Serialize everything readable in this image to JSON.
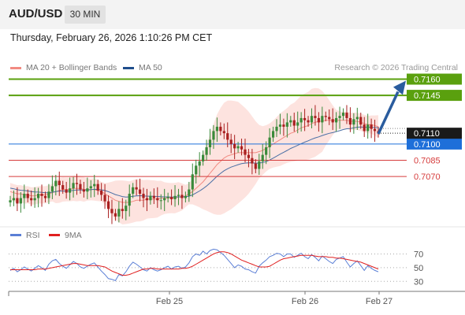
{
  "header": {
    "symbol": "AUD/USD",
    "timeframe": "30 MIN",
    "timestamp": "Thursday, February 26, 2026 1:10:26 PM CET"
  },
  "legend": {
    "ma_bb": "MA 20 + Bollinger Bands",
    "ma50": "MA 50",
    "ma_bb_color": "#f28b82",
    "ma50_color": "#1f4e8c"
  },
  "watermark": "Research © 2026 Trading Central",
  "rsi_legend": {
    "rsi": "RSI",
    "ma": "9MA",
    "rsi_color": "#5b7fd6",
    "ma_color": "#e02020"
  },
  "chart_data": [
    {
      "type": "candlestick",
      "ylim": [
        0.7022,
        0.7164
      ],
      "x_ticks": [
        "Feb 25",
        "Feb 26",
        "Feb 27"
      ],
      "last_price": {
        "label": "0.7110",
        "value": 0.711
      },
      "levels": [
        {
          "label": "0.7160",
          "value": 0.716,
          "kind": "target",
          "color": "#5aa00e"
        },
        {
          "label": "0.7145",
          "value": 0.7145,
          "kind": "target",
          "color": "#5aa00e"
        },
        {
          "label": "0.7100",
          "value": 0.71,
          "kind": "pivot",
          "color": "#1e6fd9"
        },
        {
          "label": "0.7085",
          "value": 0.7085,
          "kind": "support",
          "color": "#d63c3c"
        },
        {
          "label": "0.7070",
          "value": 0.707,
          "kind": "support",
          "color": "#d63c3c"
        }
      ],
      "close": [
        0.7048,
        0.705,
        0.7045,
        0.705,
        0.7054,
        0.705,
        0.7048,
        0.705,
        0.7054,
        0.7052,
        0.705,
        0.7056,
        0.7061,
        0.7066,
        0.7062,
        0.7058,
        0.7055,
        0.7059,
        0.7064,
        0.7063,
        0.7058,
        0.7056,
        0.7059,
        0.7061,
        0.7063,
        0.7057,
        0.7053,
        0.7047,
        0.704,
        0.7036,
        0.7033,
        0.704,
        0.7038,
        0.7043,
        0.7054,
        0.706,
        0.7058,
        0.7054,
        0.705,
        0.7048,
        0.7052,
        0.705,
        0.7048,
        0.7048,
        0.705,
        0.7051,
        0.7049,
        0.7052,
        0.7053,
        0.705,
        0.7052,
        0.7058,
        0.7072,
        0.708,
        0.7084,
        0.709,
        0.7097,
        0.7104,
        0.7112,
        0.7116,
        0.7112,
        0.711,
        0.7104,
        0.71,
        0.7096,
        0.7098,
        0.7095,
        0.709,
        0.7087,
        0.7082,
        0.7077,
        0.7084,
        0.709,
        0.7097,
        0.7106,
        0.7112,
        0.7116,
        0.7118,
        0.7116,
        0.712,
        0.7122,
        0.7117,
        0.712,
        0.7124,
        0.7122,
        0.712,
        0.7126,
        0.7124,
        0.712,
        0.7126,
        0.7125,
        0.7123,
        0.712,
        0.7124,
        0.7126,
        0.7129,
        0.7124,
        0.7118,
        0.7123,
        0.7125,
        0.7118,
        0.7112,
        0.7118,
        0.7114,
        0.7112,
        0.711
      ],
      "ma20": [
        0.7056,
        0.7055,
        0.7054,
        0.7054,
        0.7053,
        0.7053,
        0.7052,
        0.7052,
        0.7053,
        0.7053,
        0.7053,
        0.7054,
        0.7055,
        0.7056,
        0.7057,
        0.7058,
        0.7058,
        0.7058,
        0.7059,
        0.7059,
        0.7059,
        0.7058,
        0.7058,
        0.7058,
        0.7058,
        0.7057,
        0.7056,
        0.7054,
        0.7052,
        0.705,
        0.7048,
        0.7047,
        0.7046,
        0.7046,
        0.7046,
        0.7047,
        0.7048,
        0.7048,
        0.7048,
        0.7049,
        0.7049,
        0.7049,
        0.7049,
        0.705,
        0.705,
        0.705,
        0.705,
        0.705,
        0.7051,
        0.7051,
        0.7052,
        0.7054,
        0.7056,
        0.7059,
        0.7062,
        0.7065,
        0.7069,
        0.7073,
        0.7077,
        0.7081,
        0.7084,
        0.7087,
        0.7089,
        0.709,
        0.7091,
        0.7092,
        0.7092,
        0.7092,
        0.7092,
        0.7092,
        0.7092,
        0.7093,
        0.7094,
        0.7096,
        0.7098,
        0.71,
        0.7102,
        0.7104,
        0.7106,
        0.7108,
        0.711,
        0.7111,
        0.7113,
        0.7115,
        0.7116,
        0.7117,
        0.7119,
        0.712,
        0.7121,
        0.7121,
        0.7122,
        0.7122,
        0.7122,
        0.7122,
        0.7122,
        0.7122,
        0.7122,
        0.7121,
        0.7121,
        0.7121,
        0.712,
        0.7119,
        0.7118,
        0.7118,
        0.7117,
        0.7116
      ]
    },
    {
      "type": "line",
      "ylim": [
        20,
        82
      ],
      "yticks": [
        30,
        50,
        70
      ],
      "series": [
        {
          "name": "RSI",
          "values": [
            46,
            49,
            44,
            47,
            51,
            48,
            45,
            49,
            53,
            50,
            46,
            55,
            60,
            62,
            56,
            52,
            49,
            54,
            59,
            56,
            51,
            49,
            52,
            55,
            57,
            51,
            45,
            40,
            34,
            33,
            31,
            40,
            38,
            44,
            52,
            58,
            55,
            51,
            47,
            45,
            50,
            47,
            45,
            47,
            50,
            52,
            48,
            51,
            52,
            49,
            51,
            57,
            66,
            70,
            68,
            74,
            70,
            75,
            77,
            76,
            72,
            68,
            62,
            56,
            50,
            54,
            52,
            48,
            47,
            44,
            42,
            52,
            57,
            61,
            66,
            68,
            71,
            70,
            66,
            70,
            70,
            65,
            68,
            71,
            66,
            63,
            69,
            65,
            60,
            67,
            63,
            59,
            56,
            62,
            64,
            66,
            58,
            51,
            56,
            60,
            53,
            46,
            53,
            49,
            46,
            44
          ]
        },
        {
          "name": "9MA",
          "values": [
            47,
            47,
            47,
            47,
            47,
            47,
            47,
            47,
            48,
            48,
            48,
            49,
            50,
            51,
            52,
            53,
            54,
            55,
            56,
            56,
            55,
            54,
            53,
            53,
            53,
            53,
            52,
            51,
            48,
            45,
            43,
            41,
            39,
            39,
            40,
            42,
            44,
            46,
            48,
            48,
            49,
            49,
            48,
            48,
            48,
            48,
            48,
            48,
            48,
            49,
            49,
            50,
            52,
            55,
            58,
            61,
            64,
            67,
            70,
            72,
            73,
            73,
            72,
            70,
            67,
            64,
            61,
            59,
            57,
            55,
            53,
            51,
            51,
            51,
            52,
            55,
            58,
            61,
            63,
            64,
            65,
            66,
            67,
            68,
            68,
            68,
            68,
            67,
            66,
            66,
            66,
            65,
            65,
            64,
            64,
            63,
            62,
            61,
            60,
            59,
            58,
            56,
            54,
            52,
            50,
            48
          ]
        }
      ]
    }
  ]
}
